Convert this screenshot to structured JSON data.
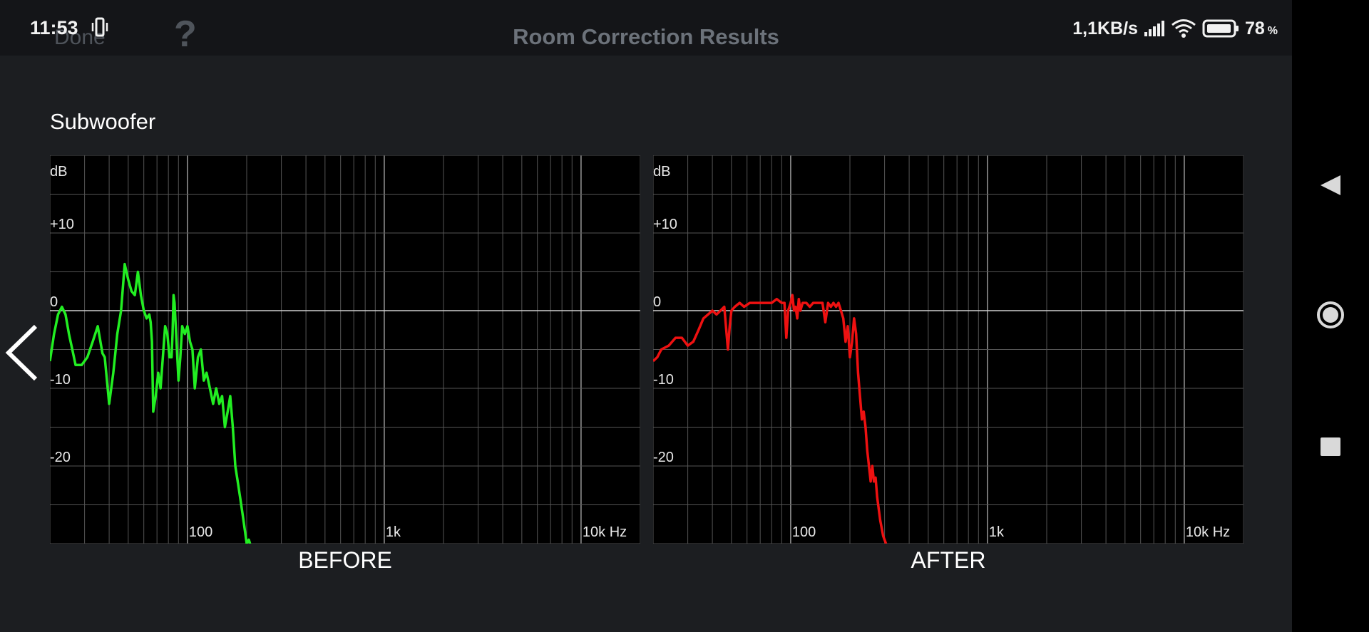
{
  "status_bar": {
    "time": "11:53",
    "network_speed": "1,1KB/s",
    "battery": "78",
    "battery_unit": "%"
  },
  "header": {
    "done_label": "Done",
    "help_label": "?",
    "title": "Room Correction Results"
  },
  "section": {
    "title": "Subwoofer"
  },
  "icons": {
    "back": "chevron-left-icon",
    "nav_back": "triangle-back-icon",
    "nav_home": "circle-home-icon",
    "nav_recents": "square-recents-icon",
    "signal": "signal-icon",
    "wifi": "wifi-icon",
    "battery": "battery-icon",
    "vibrate": "vibrate-icon"
  },
  "chart_data": [
    {
      "type": "line",
      "title": "BEFORE",
      "ylabel": "dB",
      "xscale": "log",
      "xlim": [
        20,
        20000
      ],
      "ylim": [
        -30,
        20
      ],
      "y_ticks": [
        {
          "value": 10,
          "label": "+10"
        },
        {
          "value": 0,
          "label": "0"
        },
        {
          "value": -10,
          "label": "-10"
        },
        {
          "value": -20,
          "label": "-20"
        }
      ],
      "x_ticks": [
        {
          "value": 100,
          "label": "100"
        },
        {
          "value": 1000,
          "label": "1k"
        },
        {
          "value": 10000,
          "label": "10k Hz"
        }
      ],
      "grid": true,
      "series": [
        {
          "color": "#22ee22",
          "points": [
            [
              20,
              -6.5
            ],
            [
              21,
              -3
            ],
            [
              22,
              -0.5
            ],
            [
              23,
              0.5
            ],
            [
              24,
              -0.5
            ],
            [
              25,
              -3
            ],
            [
              26,
              -5
            ],
            [
              27,
              -7
            ],
            [
              29,
              -7
            ],
            [
              31,
              -6
            ],
            [
              33,
              -4
            ],
            [
              35,
              -2
            ],
            [
              37,
              -5.5
            ],
            [
              38,
              -6
            ],
            [
              40,
              -12
            ],
            [
              42,
              -8
            ],
            [
              44,
              -3
            ],
            [
              46,
              0
            ],
            [
              48,
              6
            ],
            [
              50,
              4
            ],
            [
              52,
              2.5
            ],
            [
              54,
              2
            ],
            [
              56,
              5
            ],
            [
              58,
              2
            ],
            [
              60,
              0
            ],
            [
              62,
              -1
            ],
            [
              64,
              -0.5
            ],
            [
              65,
              -1.5
            ],
            [
              66,
              -4
            ],
            [
              67,
              -13
            ],
            [
              69,
              -11
            ],
            [
              71,
              -8
            ],
            [
              73,
              -10
            ],
            [
              75,
              -6
            ],
            [
              77,
              -2
            ],
            [
              79,
              -3
            ],
            [
              81,
              -6
            ],
            [
              83,
              -6
            ],
            [
              84,
              -3
            ],
            [
              85,
              2
            ],
            [
              86,
              1
            ],
            [
              88,
              -4
            ],
            [
              90,
              -9
            ],
            [
              92,
              -6
            ],
            [
              94,
              -2
            ],
            [
              97,
              -3
            ],
            [
              100,
              -2
            ],
            [
              103,
              -4
            ],
            [
              106,
              -5
            ],
            [
              109,
              -10
            ],
            [
              113,
              -6
            ],
            [
              117,
              -5
            ],
            [
              121,
              -9
            ],
            [
              125,
              -8
            ],
            [
              130,
              -10
            ],
            [
              135,
              -12
            ],
            [
              140,
              -10
            ],
            [
              145,
              -12
            ],
            [
              150,
              -11
            ],
            [
              155,
              -15
            ],
            [
              160,
              -13
            ],
            [
              165,
              -11
            ],
            [
              170,
              -15
            ],
            [
              175,
              -20
            ],
            [
              180,
              -22
            ],
            [
              185,
              -24
            ],
            [
              190,
              -26
            ],
            [
              195,
              -28
            ],
            [
              200,
              -30
            ],
            [
              205,
              -29.5
            ],
            [
              208,
              -30
            ]
          ]
        }
      ]
    },
    {
      "type": "line",
      "title": "AFTER",
      "ylabel": "dB",
      "xscale": "log",
      "xlim": [
        20,
        20000
      ],
      "ylim": [
        -30,
        20
      ],
      "y_ticks": [
        {
          "value": 10,
          "label": "+10"
        },
        {
          "value": 0,
          "label": "0"
        },
        {
          "value": -10,
          "label": "-10"
        },
        {
          "value": -20,
          "label": "-20"
        }
      ],
      "x_ticks": [
        {
          "value": 100,
          "label": "100"
        },
        {
          "value": 1000,
          "label": "1k"
        },
        {
          "value": 10000,
          "label": "10k Hz"
        }
      ],
      "grid": true,
      "series": [
        {
          "color": "#ee1111",
          "points": [
            [
              20,
              -6.5
            ],
            [
              21,
              -6
            ],
            [
              22,
              -5
            ],
            [
              24,
              -4.5
            ],
            [
              26,
              -3.5
            ],
            [
              28,
              -3.5
            ],
            [
              30,
              -4.5
            ],
            [
              32,
              -4
            ],
            [
              34,
              -2.5
            ],
            [
              36,
              -1
            ],
            [
              38,
              -0.5
            ],
            [
              40,
              0
            ],
            [
              42,
              -0.5
            ],
            [
              44,
              0
            ],
            [
              46,
              0.5
            ],
            [
              48,
              -5
            ],
            [
              49,
              -2
            ],
            [
              50,
              0
            ],
            [
              52,
              0.5
            ],
            [
              55,
              1
            ],
            [
              58,
              0.5
            ],
            [
              62,
              1
            ],
            [
              66,
              1
            ],
            [
              70,
              1
            ],
            [
              75,
              1
            ],
            [
              80,
              1
            ],
            [
              85,
              1.5
            ],
            [
              90,
              1
            ],
            [
              93,
              1
            ],
            [
              95,
              -3.5
            ],
            [
              97,
              0
            ],
            [
              100,
              1
            ],
            [
              102,
              2
            ],
            [
              104,
              0
            ],
            [
              106,
              0.5
            ],
            [
              108,
              -1
            ],
            [
              110,
              1.5
            ],
            [
              112,
              0
            ],
            [
              115,
              1
            ],
            [
              120,
              1
            ],
            [
              125,
              0.5
            ],
            [
              130,
              1
            ],
            [
              135,
              1
            ],
            [
              140,
              1
            ],
            [
              145,
              1
            ],
            [
              150,
              -1.5
            ],
            [
              155,
              1
            ],
            [
              160,
              0.5
            ],
            [
              165,
              1
            ],
            [
              170,
              0.5
            ],
            [
              175,
              1
            ],
            [
              180,
              0
            ],
            [
              185,
              -1
            ],
            [
              190,
              -4
            ],
            [
              195,
              -2
            ],
            [
              200,
              -6
            ],
            [
              205,
              -4
            ],
            [
              210,
              -1
            ],
            [
              215,
              -3
            ],
            [
              220,
              -8
            ],
            [
              225,
              -11
            ],
            [
              230,
              -14
            ],
            [
              235,
              -13
            ],
            [
              240,
              -15
            ],
            [
              245,
              -18
            ],
            [
              250,
              -20
            ],
            [
              255,
              -22
            ],
            [
              260,
              -20
            ],
            [
              265,
              -22
            ],
            [
              270,
              -21.5
            ],
            [
              275,
              -24
            ],
            [
              285,
              -27
            ],
            [
              295,
              -29
            ],
            [
              305,
              -30
            ]
          ]
        }
      ]
    }
  ],
  "chart_labels": {
    "before": "BEFORE",
    "after": "AFTER"
  }
}
